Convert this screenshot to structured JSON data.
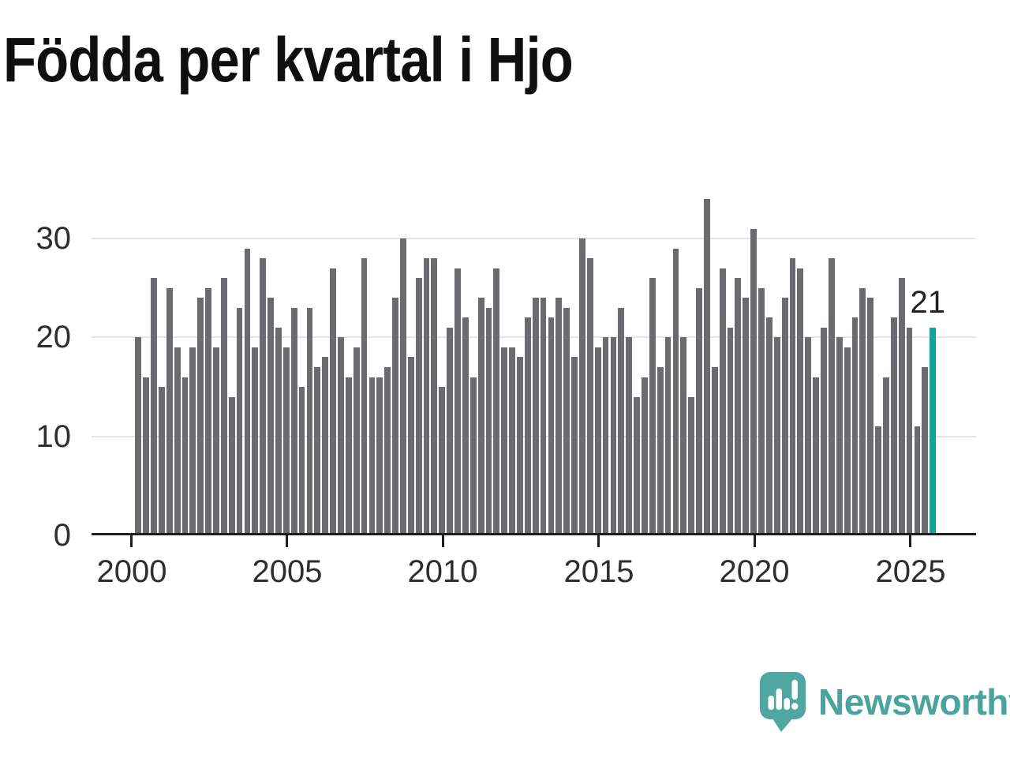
{
  "title": "Födda per kvartal i Hjo",
  "annotation": {
    "label": "21"
  },
  "logo": {
    "brand": "Newsworthy"
  },
  "colors": {
    "bar": "#6a6a6f",
    "highlight": "#0fa59b",
    "grid": "#e5e5e5",
    "axis": "#1f1f1f",
    "logo_teal": "#4fa7a2"
  },
  "chart_data": {
    "type": "bar",
    "title": "Födda per kvartal i Hjo",
    "x_unit": "quarter",
    "start": "2000-Q1",
    "end": "2025-Q3",
    "values": [
      20,
      16,
      26,
      15,
      25,
      19,
      16,
      19,
      24,
      25,
      19,
      26,
      14,
      23,
      29,
      19,
      28,
      24,
      21,
      19,
      23,
      15,
      23,
      17,
      18,
      27,
      20,
      16,
      19,
      28,
      16,
      16,
      17,
      24,
      30,
      18,
      26,
      28,
      28,
      15,
      21,
      27,
      22,
      16,
      24,
      23,
      27,
      19,
      19,
      18,
      22,
      24,
      24,
      22,
      24,
      23,
      18,
      30,
      28,
      19,
      20,
      20,
      23,
      20,
      14,
      16,
      26,
      17,
      20,
      29,
      20,
      14,
      25,
      34,
      17,
      27,
      21,
      26,
      24,
      31,
      25,
      22,
      20,
      24,
      28,
      27,
      20,
      16,
      21,
      28,
      20,
      19,
      22,
      25,
      24,
      11,
      16,
      22,
      26,
      21,
      11,
      17,
      21
    ],
    "highlight_index": 102,
    "highlight_value": 21,
    "xticks": [
      "2000",
      "2005",
      "2010",
      "2015",
      "2020",
      "2025"
    ],
    "yticks": [
      "0",
      "10",
      "20",
      "30"
    ],
    "ylim": [
      0,
      35
    ],
    "grid": true,
    "legend": false,
    "bar_color": "#6a6a6f",
    "highlight_color": "#0fa59b"
  }
}
